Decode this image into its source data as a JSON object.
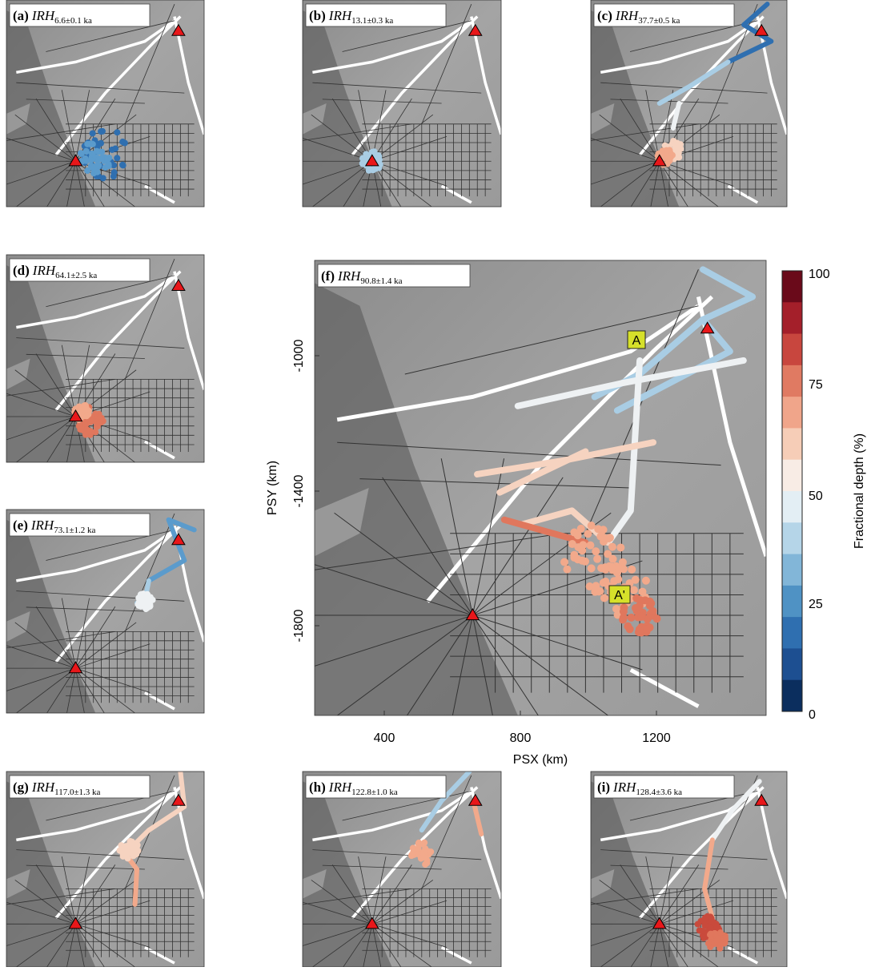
{
  "panels": [
    {
      "label": "(a)",
      "name": "IRH",
      "age": "6.6±0.1 ka"
    },
    {
      "label": "(b)",
      "name": "IRH",
      "age": "13.1±0.3 ka"
    },
    {
      "label": "(c)",
      "name": "IRH",
      "age": "37.7±0.5 ka"
    },
    {
      "label": "(d)",
      "name": "IRH",
      "age": "64.1±2.5 ka"
    },
    {
      "label": "(e)",
      "name": "IRH",
      "age": "73.1±1.2 ka"
    },
    {
      "label": "(f)",
      "name": "IRH",
      "age": "90.8±1.4 ka"
    },
    {
      "label": "(g)",
      "name": "IRH",
      "age": "117.0±1.3 ka"
    },
    {
      "label": "(h)",
      "name": "IRH",
      "age": "122.8±1.0 ka"
    },
    {
      "label": "(i)",
      "name": "IRH",
      "age": "128.4±3.6 ka"
    }
  ],
  "main": {
    "xlabel": "PSX (km)",
    "ylabel": "PSY (km)",
    "xticks": [
      "400",
      "800",
      "1200"
    ],
    "yticks": [
      "-1000",
      "-1400",
      "-1800"
    ],
    "markers": [
      "A",
      "A'"
    ]
  },
  "colorbar": {
    "label": "Fractional depth (%)",
    "ticks": [
      "100",
      "75",
      "50",
      "25",
      "0"
    ]
  }
}
